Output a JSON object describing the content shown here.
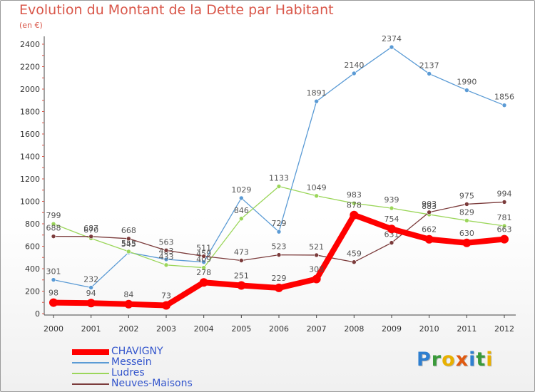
{
  "header": {
    "title": "Evolution du Montant de la Dette par Habitant",
    "unit": "(en €)"
  },
  "chart_data": {
    "type": "line",
    "title": "Evolution du Montant de la Dette par Habitant",
    "subtitle": "(en €)",
    "x": [
      2000,
      2001,
      2002,
      2003,
      2004,
      2005,
      2006,
      2007,
      2008,
      2009,
      2010,
      2011,
      2012
    ],
    "ylim": [
      0,
      2400
    ],
    "yticks": [
      0,
      200,
      400,
      600,
      800,
      1000,
      1200,
      1400,
      1600,
      1800,
      2000,
      2200,
      2400
    ],
    "grid": false,
    "legend": "bottom-left",
    "series": [
      {
        "name": "CHAVIGNY",
        "color": "#ff0000",
        "values": [
          98,
          94,
          84,
          73,
          278,
          251,
          229,
          308,
          878,
          754,
          662,
          630,
          663
        ]
      },
      {
        "name": "Messein",
        "color": "#5b9bd5",
        "values": [
          301,
          232,
          545,
          483,
          459,
          1029,
          729,
          1891,
          2140,
          2374,
          2137,
          1990,
          1856
        ]
      },
      {
        "name": "Ludres",
        "color": "#9bd65a",
        "values": [
          799,
          670,
          553,
          433,
          409,
          846,
          1133,
          1049,
          983,
          939,
          883,
          829,
          781
        ]
      },
      {
        "name": "Neuves-Maisons",
        "color": "#7b3b3b",
        "values": [
          688,
          687,
          668,
          563,
          511,
          473,
          523,
          521,
          459,
          631,
          903,
          975,
          994
        ]
      }
    ]
  },
  "logo": {
    "letters": [
      {
        "ch": "P",
        "color": "#2e7fd0"
      },
      {
        "ch": "r",
        "color": "#3a9a3a"
      },
      {
        "ch": "o",
        "color": "#e8b000"
      },
      {
        "ch": "x",
        "color": "#e05a10"
      },
      {
        "ch": "i",
        "color": "#2e7fd0"
      },
      {
        "ch": "t",
        "color": "#3a9a3a"
      },
      {
        "ch": "i",
        "color": "#e8b000"
      }
    ]
  }
}
